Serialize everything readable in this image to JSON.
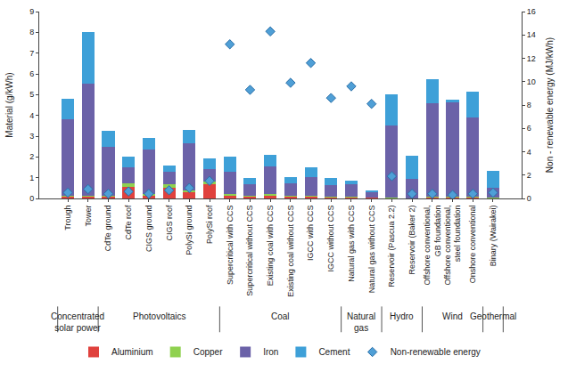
{
  "chart_data": {
    "type": "bar",
    "stacked": true,
    "categories": [
      "Trough",
      "Tower",
      "CdTe ground",
      "CdTe roof",
      "CIGS ground",
      "CIGS roof",
      "PolySi ground",
      "PolySi roof",
      "Supercritical with CCS",
      "Supercritical without CCS",
      "Existing coal with CCS",
      "Existing coal without CCS",
      "IGCC with CCS",
      "IGCC without CCS",
      "Natural gas with CCS",
      "Natural gas without CCS",
      "Reservoir (Pascua 2.2)",
      "Reservoir (Baker 2)",
      "Offshore conventional,\nGB foundation",
      "Offshore conventional,\nsteel foundation",
      "Onshore conventional",
      "Binary (Wairakei)"
    ],
    "groups": [
      {
        "label": "Concentrated\nsolar power",
        "categories": [
          "Trough",
          "Tower"
        ]
      },
      {
        "label": "Photovoltaics",
        "categories": [
          "CdTe ground",
          "CdTe roof",
          "CIGS ground",
          "CIGS roof",
          "PolySi ground",
          "PolySi roof"
        ]
      },
      {
        "label": "Coal",
        "categories": [
          "Supercritical with CCS",
          "Supercritical without CCS",
          "Existing coal with CCS",
          "Existing coal without CCS",
          "IGCC with CCS",
          "IGCC without CCS"
        ]
      },
      {
        "label": "Natural\ngas",
        "categories": [
          "Natural gas with CCS",
          "Natural gas without CCS"
        ]
      },
      {
        "label": "Hydro",
        "categories": [
          "Reservoir (Pascua 2.2)",
          "Reservoir (Baker 2)"
        ]
      },
      {
        "label": "Wind",
        "categories": [
          "Offshore conventional,\nGB foundation",
          "Offshore conventional,\nsteel foundation",
          "Onshore conventional"
        ]
      },
      {
        "label": "Geothermal",
        "categories": [
          "Binary (Wairakei)"
        ]
      }
    ],
    "y_label": "Material (g/kWh)",
    "y2_label": "Non - renewable energy (MJ/kWh)",
    "ylim": [
      0,
      9
    ],
    "yticks": [
      0,
      1,
      2,
      3,
      4,
      5,
      6,
      7,
      8,
      9
    ],
    "y2lim": [
      0,
      16
    ],
    "y2ticks": [
      0,
      2,
      4,
      6,
      8,
      10,
      12,
      14,
      16
    ],
    "grid": false,
    "legend": "bottom",
    "series": [
      {
        "name": "Aluminium",
        "type": "bar",
        "color": "#e0413d",
        "values": [
          0.1,
          0.1,
          0.1,
          0.55,
          0.15,
          0.5,
          0.3,
          0.7,
          0.15,
          0.1,
          0.15,
          0.1,
          0.1,
          0.05,
          0.05,
          0.03,
          0.02,
          0.01,
          0.05,
          0.05,
          0.05,
          0.02
        ]
      },
      {
        "name": "Copper",
        "type": "bar",
        "color": "#8fd14f",
        "values": [
          0.05,
          0.05,
          0.05,
          0.2,
          0.05,
          0.2,
          0.1,
          0.1,
          0.05,
          0.02,
          0.05,
          0.02,
          0.03,
          0.02,
          0.02,
          0.01,
          0.01,
          0.01,
          0.02,
          0.02,
          0.02,
          0.01
        ]
      },
      {
        "name": "Iron",
        "type": "bar",
        "color": "#6b62a8",
        "values": [
          3.65,
          5.4,
          2.35,
          0.75,
          2.15,
          0.6,
          2.25,
          0.6,
          1.1,
          0.58,
          1.35,
          0.63,
          0.92,
          0.58,
          0.63,
          0.26,
          3.47,
          0.93,
          4.53,
          4.58,
          3.83,
          0.47
        ]
      },
      {
        "name": "Cement",
        "type": "bar",
        "color": "#3ea0d8",
        "values": [
          1.0,
          2.45,
          0.75,
          0.5,
          0.55,
          0.3,
          0.65,
          0.55,
          0.7,
          0.3,
          0.55,
          0.3,
          0.45,
          0.35,
          0.15,
          0.1,
          1.5,
          1.1,
          1.15,
          0.1,
          1.25,
          0.85
        ]
      },
      {
        "name": "Non-renewable energy",
        "type": "scatter",
        "marker": "diamond",
        "axis": "y2",
        "color": "#4f9fd6",
        "values": [
          0.5,
          0.8,
          0.4,
          0.6,
          0.4,
          0.7,
          0.9,
          1.5,
          13.2,
          9.3,
          14.3,
          9.9,
          11.6,
          8.6,
          9.6,
          8.1,
          1.9,
          0.4,
          0.4,
          0.3,
          0.4,
          0.5
        ]
      }
    ]
  }
}
